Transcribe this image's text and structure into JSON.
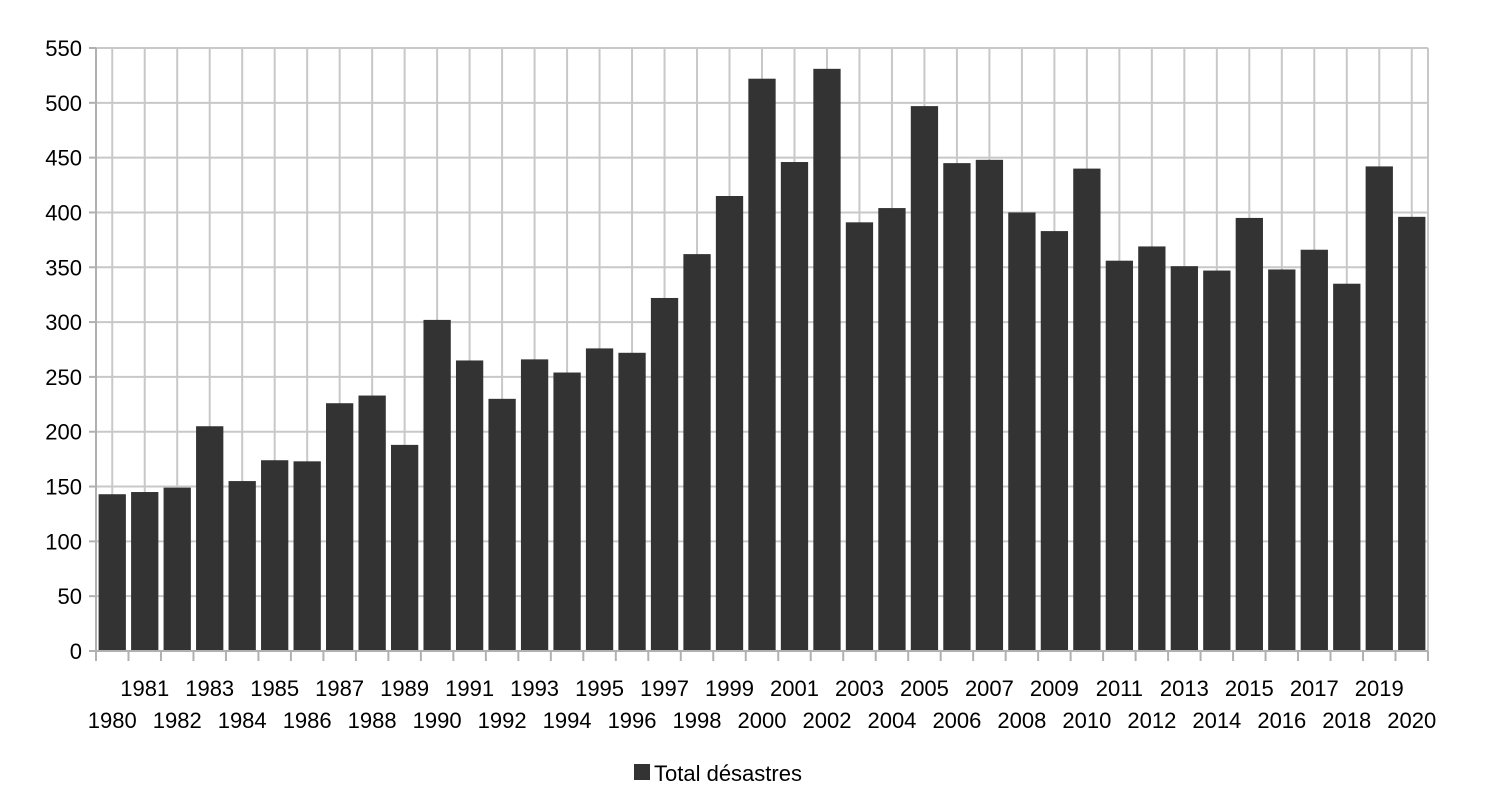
{
  "chart_data": {
    "type": "bar",
    "categories": [
      "1980",
      "1981",
      "1982",
      "1983",
      "1984",
      "1985",
      "1986",
      "1987",
      "1988",
      "1989",
      "1990",
      "1991",
      "1992",
      "1993",
      "1994",
      "1995",
      "1996",
      "1997",
      "1998",
      "1999",
      "2000",
      "2001",
      "2002",
      "2003",
      "2004",
      "2005",
      "2006",
      "2007",
      "2008",
      "2009",
      "2010",
      "2011",
      "2012",
      "2013",
      "2014",
      "2015",
      "2016",
      "2017",
      "2018",
      "2019",
      "2020"
    ],
    "series": [
      {
        "name": "Total désastres",
        "color": "#333333",
        "values": [
          143,
          145,
          149,
          205,
          155,
          174,
          173,
          226,
          233,
          188,
          302,
          265,
          230,
          266,
          254,
          276,
          272,
          322,
          362,
          415,
          522,
          446,
          531,
          391,
          404,
          497,
          445,
          448,
          400,
          383,
          440,
          356,
          369,
          351,
          347,
          395,
          348,
          366,
          335,
          442,
          396
        ]
      }
    ],
    "title": "",
    "xlabel": "",
    "ylabel": "",
    "ylim": [
      0,
      550
    ],
    "yticks": [
      "0",
      "50",
      "100",
      "150",
      "200",
      "250",
      "300",
      "350",
      "400",
      "450",
      "500",
      "550"
    ],
    "grid": true,
    "legend_position": "bottom"
  }
}
